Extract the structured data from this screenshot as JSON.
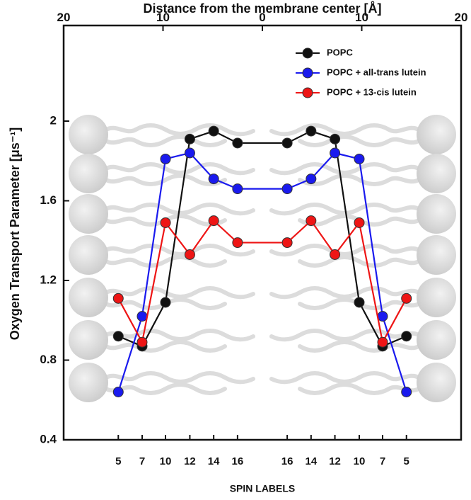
{
  "chart_data": {
    "type": "line",
    "title": "Distance from the membrane center [Å]",
    "x_label": "SPIN LABELS",
    "y_label": "Oxygen Transport Parameter [μs⁻¹]",
    "x": [
      -14.5,
      -12.1,
      -9.75,
      -7.3,
      -4.9,
      -2.5,
      2.5,
      4.9,
      7.3,
      9.75,
      12.1,
      14.5
    ],
    "xlim": [
      -20,
      20
    ],
    "xticks": [
      {
        "value": -20,
        "label": "20"
      },
      {
        "value": -10,
        "label": "10"
      },
      0,
      10,
      20
    ],
    "spin_label_ticks": [
      {
        "value": -14.5,
        "label": "5"
      },
      {
        "value": -12.1,
        "label": "7"
      },
      {
        "value": -9.75,
        "label": "10"
      },
      {
        "value": -7.3,
        "label": "12"
      },
      {
        "value": -4.9,
        "label": "14"
      },
      {
        "value": -2.5,
        "label": "16"
      },
      {
        "value": 2.5,
        "label": "16"
      },
      {
        "value": 4.9,
        "label": "14"
      },
      {
        "value": 7.3,
        "label": "12"
      },
      {
        "value": 9.75,
        "label": "10"
      },
      {
        "value": 12.1,
        "label": "7"
      },
      {
        "value": 14.5,
        "label": "5"
      }
    ],
    "ylim": [
      0.4,
      2.48
    ],
    "yticks": [
      0.4,
      0.8,
      1.2,
      1.6,
      2
    ],
    "grid": false,
    "legend": "upper right",
    "series": [
      {
        "name": "POPC",
        "color": "#111111",
        "values": [
          0.92,
          0.87,
          1.09,
          1.91,
          1.95,
          1.89,
          1.89,
          1.95,
          1.91,
          1.09,
          0.87,
          0.92
        ]
      },
      {
        "name": "POPC + all-trans lutein",
        "color": "#1a1aee",
        "values": [
          0.64,
          1.02,
          1.81,
          1.84,
          1.71,
          1.66,
          1.66,
          1.71,
          1.84,
          1.81,
          1.02,
          0.64
        ]
      },
      {
        "name": "POPC + 13-cis lutein",
        "color": "#ee1515",
        "values": [
          1.11,
          0.89,
          1.49,
          1.33,
          1.5,
          1.39,
          1.39,
          1.5,
          1.33,
          1.49,
          0.89,
          1.11
        ]
      }
    ]
  }
}
